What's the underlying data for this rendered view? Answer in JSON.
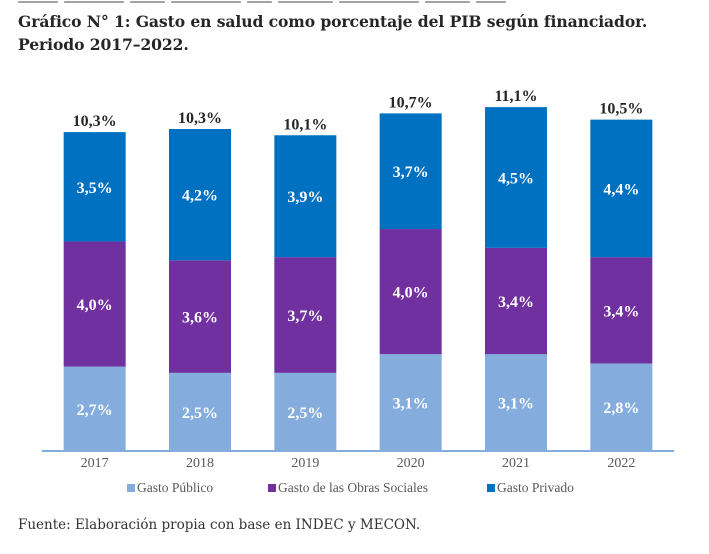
{
  "title": {
    "line1": "Gráfico N° 1: Gasto en salud como porcentaje del PIB según financiador.",
    "line2": "Periodo 2017–2022."
  },
  "source": "Fuente: Elaboración propia con base en INDEC y MECON.",
  "colors": {
    "gasto_publico": "#84acdc",
    "gasto_obras_sociales": "#7030a0",
    "gasto_privado": "#0070c0",
    "axis": "#84acdc"
  },
  "chart_data": {
    "type": "bar",
    "stacked": true,
    "title": "Gráfico N° 1: Gasto en salud como porcentaje del PIB según financiador. Periodo 2017–2022.",
    "xlabel": "",
    "ylabel": "",
    "categories": [
      "2017",
      "2018",
      "2019",
      "2020",
      "2021",
      "2022"
    ],
    "series": [
      {
        "name": "Gasto Público",
        "color": "#84acdc",
        "values": [
          2.7,
          2.5,
          2.5,
          3.1,
          3.1,
          2.8
        ],
        "labels": [
          "2,7%",
          "2,5%",
          "2,5%",
          "3,1%",
          "3,1%",
          "2,8%"
        ]
      },
      {
        "name": "Gasto de las Obras Sociales",
        "color": "#7030a0",
        "values": [
          4.0,
          3.6,
          3.7,
          4.0,
          3.4,
          3.4
        ],
        "labels": [
          "4,0%",
          "3,6%",
          "3,7%",
          "4,0%",
          "3,4%",
          "3,4%"
        ]
      },
      {
        "name": "Gasto Privado",
        "color": "#0070c0",
        "values": [
          3.5,
          4.2,
          3.9,
          3.7,
          4.5,
          4.4
        ],
        "labels": [
          "3,5%",
          "4,2%",
          "3,9%",
          "3,7%",
          "4,5%",
          "4,4%"
        ]
      }
    ],
    "totals": [
      10.3,
      10.3,
      10.1,
      10.7,
      11.1,
      10.5
    ],
    "total_labels": [
      "10,3%",
      "10,3%",
      "10,1%",
      "10,7%",
      "11,1%",
      "10,5%"
    ],
    "ylim": [
      0,
      11.1
    ],
    "grid": false,
    "legend_position": "bottom"
  }
}
